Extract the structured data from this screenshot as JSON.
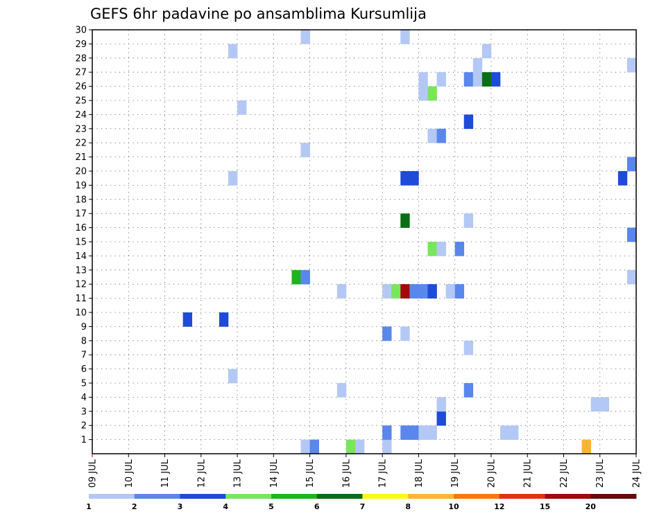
{
  "chart_data": {
    "type": "heatmap",
    "title": "GEFS 6hr padavine po ansamblima Kursumlija",
    "xlabel": "",
    "ylabel": "",
    "x_dates": [
      "09 JUL",
      "10 JUL",
      "11 JUL",
      "12 JUL",
      "13 JUL",
      "14 JUL",
      "15 JUL",
      "16 JUL",
      "17 JUL",
      "18 JUL",
      "19 JUL",
      "20 JUL",
      "21 JUL",
      "22 JUL",
      "23 JUL",
      "24 JUL"
    ],
    "xlim": [
      0,
      15
    ],
    "ylim": [
      0,
      30
    ],
    "y_ticks": [
      1,
      2,
      3,
      4,
      5,
      6,
      7,
      8,
      9,
      10,
      11,
      12,
      13,
      14,
      15,
      16,
      17,
      18,
      19,
      20,
      21,
      22,
      23,
      24,
      25,
      26,
      27,
      28,
      29,
      30
    ],
    "grid": true,
    "legend": "bottom",
    "colorbar": {
      "labels": [
        "1",
        "2",
        "3",
        "4",
        "5",
        "6",
        "7",
        "8",
        "10",
        "12",
        "15",
        "20"
      ],
      "colors": [
        "#b4c8f5",
        "#5a87eb",
        "#1e4bd7",
        "#78e65a",
        "#1eb41e",
        "#0a6e14",
        "#fafa14",
        "#ffb432",
        "#fa780a",
        "#e6320a",
        "#a00a0a",
        "#640a0a"
      ]
    },
    "cells": [
      {
        "day": 5.75,
        "member": 0,
        "color": "#b4c8f5"
      },
      {
        "day": 6.0,
        "member": 0,
        "color": "#5a87eb"
      },
      {
        "day": 7.0,
        "member": 0,
        "color": "#78e65a"
      },
      {
        "day": 7.25,
        "member": 0,
        "color": "#b4c8f5"
      },
      {
        "day": 8.0,
        "member": 0,
        "color": "#b4c8f5"
      },
      {
        "day": 13.5,
        "member": 0,
        "color": "#ffb432"
      },
      {
        "day": 8.0,
        "member": 1,
        "color": "#5a87eb"
      },
      {
        "day": 8.5,
        "member": 1,
        "color": "#5a87eb"
      },
      {
        "day": 8.75,
        "member": 1,
        "color": "#5a87eb"
      },
      {
        "day": 9.0,
        "member": 1,
        "color": "#b4c8f5"
      },
      {
        "day": 9.25,
        "member": 1,
        "color": "#b4c8f5"
      },
      {
        "day": 11.25,
        "member": 1,
        "color": "#b4c8f5"
      },
      {
        "day": 11.5,
        "member": 1,
        "color": "#b4c8f5"
      },
      {
        "day": 9.5,
        "member": 2,
        "color": "#1e4bd7"
      },
      {
        "day": 9.5,
        "member": 3,
        "color": "#b4c8f5"
      },
      {
        "day": 13.75,
        "member": 3,
        "color": "#b4c8f5"
      },
      {
        "day": 14.0,
        "member": 3,
        "color": "#b4c8f5"
      },
      {
        "day": 6.75,
        "member": 4,
        "color": "#b4c8f5"
      },
      {
        "day": 10.25,
        "member": 4,
        "color": "#5a87eb"
      },
      {
        "day": 3.75,
        "member": 5,
        "color": "#b4c8f5"
      },
      {
        "day": 10.25,
        "member": 7,
        "color": "#b4c8f5"
      },
      {
        "day": 8.0,
        "member": 8,
        "color": "#5a87eb"
      },
      {
        "day": 8.5,
        "member": 8,
        "color": "#b4c8f5"
      },
      {
        "day": 2.5,
        "member": 9,
        "color": "#1e4bd7"
      },
      {
        "day": 3.5,
        "member": 9,
        "color": "#1e4bd7"
      },
      {
        "day": 6.75,
        "member": 11,
        "color": "#b4c8f5"
      },
      {
        "day": 8.0,
        "member": 11,
        "color": "#b4c8f5"
      },
      {
        "day": 8.25,
        "member": 11,
        "color": "#78e65a"
      },
      {
        "day": 8.5,
        "member": 11,
        "color": "#a00a0a"
      },
      {
        "day": 8.75,
        "member": 11,
        "color": "#5a87eb"
      },
      {
        "day": 9.0,
        "member": 11,
        "color": "#5a87eb"
      },
      {
        "day": 9.25,
        "member": 11,
        "color": "#1e4bd7"
      },
      {
        "day": 9.75,
        "member": 11,
        "color": "#b4c8f5"
      },
      {
        "day": 10.0,
        "member": 11,
        "color": "#5a87eb"
      },
      {
        "day": 5.5,
        "member": 12,
        "color": "#1eb41e"
      },
      {
        "day": 5.75,
        "member": 12,
        "color": "#5a87eb"
      },
      {
        "day": 14.75,
        "member": 12,
        "color": "#b4c8f5"
      },
      {
        "day": 9.25,
        "member": 14,
        "color": "#78e65a"
      },
      {
        "day": 9.5,
        "member": 14,
        "color": "#b4c8f5"
      },
      {
        "day": 10.0,
        "member": 14,
        "color": "#5a87eb"
      },
      {
        "day": 14.75,
        "member": 15,
        "color": "#5a87eb"
      },
      {
        "day": 8.5,
        "member": 16,
        "color": "#0a6e14"
      },
      {
        "day": 10.25,
        "member": 16,
        "color": "#b4c8f5"
      },
      {
        "day": 3.75,
        "member": 19,
        "color": "#b4c8f5"
      },
      {
        "day": 8.5,
        "member": 19,
        "color": "#1e4bd7"
      },
      {
        "day": 8.75,
        "member": 19,
        "color": "#1e4bd7"
      },
      {
        "day": 14.5,
        "member": 19,
        "color": "#1e4bd7"
      },
      {
        "day": 14.75,
        "member": 20,
        "color": "#5a87eb"
      },
      {
        "day": 5.75,
        "member": 21,
        "color": "#b4c8f5"
      },
      {
        "day": 9.25,
        "member": 22,
        "color": "#b4c8f5"
      },
      {
        "day": 9.5,
        "member": 22,
        "color": "#5a87eb"
      },
      {
        "day": 10.25,
        "member": 23,
        "color": "#1e4bd7"
      },
      {
        "day": 4.0,
        "member": 24,
        "color": "#b4c8f5"
      },
      {
        "day": 9.0,
        "member": 25,
        "color": "#b4c8f5"
      },
      {
        "day": 9.25,
        "member": 25,
        "color": "#78e65a"
      },
      {
        "day": 9.0,
        "member": 26,
        "color": "#b4c8f5"
      },
      {
        "day": 9.5,
        "member": 26,
        "color": "#b4c8f5"
      },
      {
        "day": 10.25,
        "member": 26,
        "color": "#5a87eb"
      },
      {
        "day": 10.5,
        "member": 26,
        "color": "#b4c8f5"
      },
      {
        "day": 10.75,
        "member": 26,
        "color": "#0a6e14"
      },
      {
        "day": 11.0,
        "member": 26,
        "color": "#1e4bd7"
      },
      {
        "day": 10.5,
        "member": 27,
        "color": "#b4c8f5"
      },
      {
        "day": 14.75,
        "member": 27,
        "color": "#b4c8f5"
      },
      {
        "day": 3.75,
        "member": 28,
        "color": "#b4c8f5"
      },
      {
        "day": 10.75,
        "member": 28,
        "color": "#b4c8f5"
      },
      {
        "day": 5.75,
        "member": 29,
        "color": "#b4c8f5"
      },
      {
        "day": 8.5,
        "member": 29,
        "color": "#b4c8f5"
      }
    ]
  }
}
